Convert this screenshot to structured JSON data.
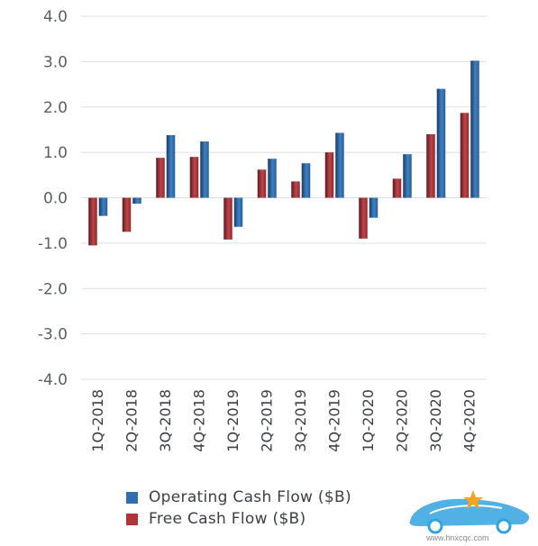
{
  "chart_data": {
    "type": "bar",
    "categories": [
      "1Q-2018",
      "2Q-2018",
      "3Q-2018",
      "4Q-2018",
      "1Q-2019",
      "2Q-2019",
      "3Q-2019",
      "4Q-2019",
      "1Q-2020",
      "2Q-2020",
      "3Q-2020",
      "4Q-2020"
    ],
    "series": [
      {
        "name": "Free Cash Flow ($B)",
        "color": "#b0353a",
        "values": [
          -1.05,
          -0.75,
          0.88,
          0.9,
          -0.92,
          0.62,
          0.36,
          1.0,
          -0.9,
          0.42,
          1.4,
          1.87
        ]
      },
      {
        "name": "Operating Cash Flow ($B)",
        "color": "#2f6fb0",
        "values": [
          -0.4,
          -0.13,
          1.38,
          1.24,
          -0.64,
          0.86,
          0.76,
          1.43,
          -0.44,
          0.96,
          2.4,
          3.02
        ]
      }
    ],
    "yticks": [
      "4.0",
      "3.0",
      "2.0",
      "1.0",
      "0.0",
      "-1.0",
      "-2.0",
      "-3.0",
      "-4.0"
    ],
    "ylim": [
      -4,
      4
    ],
    "grid": true,
    "legend_position": "bottom"
  },
  "legend": {
    "operating": "Operating Cash Flow ($B)",
    "free": "Free Cash Flow ($B)"
  },
  "watermark": {
    "url": "www.hnxcqc.com"
  }
}
